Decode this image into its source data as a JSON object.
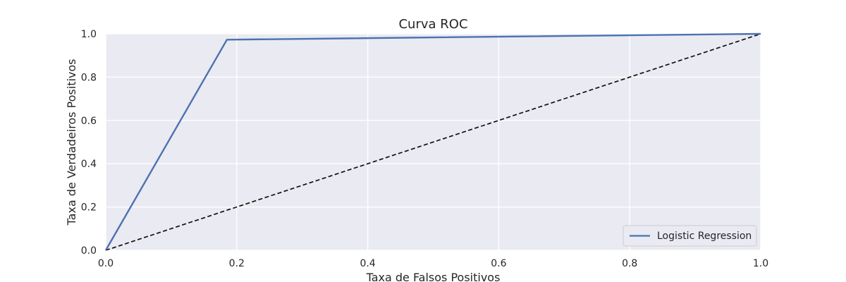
{
  "chart_data": {
    "type": "line",
    "title": "Curva ROC",
    "xlabel": "Taxa de Falsos Positivos",
    "ylabel": "Taxa de Verdadeiros Positivos",
    "xlim": [
      0.0,
      1.0
    ],
    "ylim": [
      0.0,
      1.0
    ],
    "xticks": [
      "0.0",
      "0.2",
      "0.4",
      "0.6",
      "0.8",
      "1.0"
    ],
    "yticks": [
      "0.0",
      "0.2",
      "0.4",
      "0.6",
      "0.8",
      "1.0"
    ],
    "grid": true,
    "legend_position": "lower-right",
    "series": [
      {
        "name": "Logistic Regression",
        "x": [
          0.0,
          0.185,
          1.0
        ],
        "y": [
          0.0,
          0.973,
          1.0
        ],
        "color": "#4c72b0",
        "style": "solid"
      },
      {
        "x": [
          0.0,
          1.0
        ],
        "y": [
          0.0,
          1.0
        ],
        "color": "#111111",
        "style": "dashed"
      }
    ],
    "colors": {
      "plot_background": "#eaeaf2",
      "grid": "#ffffff",
      "text": "#262626"
    }
  }
}
